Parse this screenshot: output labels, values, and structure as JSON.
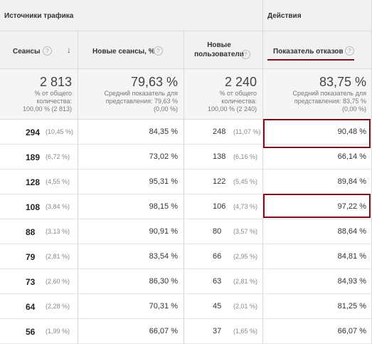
{
  "groups": {
    "traffic_sources": "Источники трафика",
    "actions": "Действия"
  },
  "headers": {
    "sessions": "Сеансы",
    "new_sessions": "Новые сеансы, %",
    "new_users": "Новые пользователи",
    "bounce_rate": "Показатель отказов"
  },
  "icons": {
    "help": "question-mark-icon",
    "sort": "arrow-down-icon"
  },
  "summary": {
    "sessions": {
      "value": "2 813",
      "sub": "% от общего\nколичества:\n100,00 % (2 813)"
    },
    "new_sessions": {
      "value": "79,63 %",
      "sub": "Средний показатель для\nпредставления: 79,63 %\n(0,00 %)"
    },
    "new_users": {
      "value": "2 240",
      "sub": "% от общего\nколичества:\n100,00 % (2 240)"
    },
    "bounce_rate": {
      "value": "83,75 %",
      "sub": "Средний показатель для\nпредставления: 83,75 %\n(0,00 %)"
    }
  },
  "rows": [
    {
      "sessions": "294",
      "sessions_pct": "(10,45 %)",
      "new_sessions": "84,35 %",
      "new_users": "248",
      "new_users_pct": "(11,07 %)",
      "bounce_rate": "90,48 %"
    },
    {
      "sessions": "189",
      "sessions_pct": "(6,72 %)",
      "new_sessions": "73,02 %",
      "new_users": "138",
      "new_users_pct": "(6,16 %)",
      "bounce_rate": "66,14 %"
    },
    {
      "sessions": "128",
      "sessions_pct": "(4,55 %)",
      "new_sessions": "95,31 %",
      "new_users": "122",
      "new_users_pct": "(5,45 %)",
      "bounce_rate": "89,84 %"
    },
    {
      "sessions": "108",
      "sessions_pct": "(3,84 %)",
      "new_sessions": "98,15 %",
      "new_users": "106",
      "new_users_pct": "(4,73 %)",
      "bounce_rate": "97,22 %"
    },
    {
      "sessions": "88",
      "sessions_pct": "(3,13 %)",
      "new_sessions": "90,91 %",
      "new_users": "80",
      "new_users_pct": "(3,57 %)",
      "bounce_rate": "88,64 %"
    },
    {
      "sessions": "79",
      "sessions_pct": "(2,81 %)",
      "new_sessions": "83,54 %",
      "new_users": "66",
      "new_users_pct": "(2,95 %)",
      "bounce_rate": "84,81 %"
    },
    {
      "sessions": "73",
      "sessions_pct": "(2,60 %)",
      "new_sessions": "86,30 %",
      "new_users": "63",
      "new_users_pct": "(2,81 %)",
      "bounce_rate": "84,93 %"
    },
    {
      "sessions": "64",
      "sessions_pct": "(2,28 %)",
      "new_sessions": "70,31 %",
      "new_users": "45",
      "new_users_pct": "(2,01 %)",
      "bounce_rate": "81,25 %"
    },
    {
      "sessions": "56",
      "sessions_pct": "(1,99 %)",
      "new_sessions": "66,07 %",
      "new_users": "37",
      "new_users_pct": "(1,65 %)",
      "bounce_rate": "66,07 %"
    }
  ],
  "highlight_color": "#7a0f1d"
}
